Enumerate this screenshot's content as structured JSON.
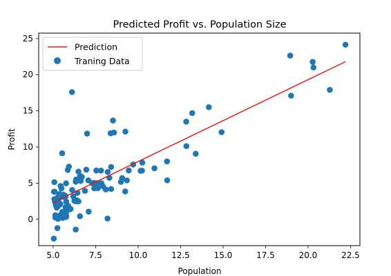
{
  "chart_data": {
    "type": "scatter",
    "title": "Predicted Profit vs. Population Size",
    "xlabel": "Population",
    "ylabel": "Profit",
    "xlim": [
      4.15,
      23.05
    ],
    "ylim": [
      -3.65,
      25.75
    ],
    "x_ticks": [
      "5.0",
      "7.5",
      "10.0",
      "12.5",
      "15.0",
      "17.5",
      "20.0",
      "22.5"
    ],
    "y_ticks": [
      "0",
      "5",
      "10",
      "15",
      "20",
      "25"
    ],
    "grid": false,
    "legend": {
      "position": "top-left",
      "entries": [
        "Prediction",
        "Traning Data"
      ]
    },
    "colors": {
      "prediction": "#e31a1c",
      "training": "#1f77b4"
    },
    "series": [
      {
        "name": "Prediction",
        "type": "line",
        "x": [
          5.03,
          22.2
        ],
        "y": [
          2.35,
          21.8
        ]
      },
      {
        "name": "Traning Data",
        "type": "scatter",
        "points": [
          [
            6.11,
            17.59
          ],
          [
            5.53,
            9.13
          ],
          [
            8.52,
            13.66
          ],
          [
            7.0,
            11.85
          ],
          [
            5.86,
            6.82
          ],
          [
            8.38,
            11.89
          ],
          [
            7.48,
            4.35
          ],
          [
            8.58,
            12.0
          ],
          [
            6.49,
            6.6
          ],
          [
            5.05,
            3.82
          ],
          [
            5.71,
            3.25
          ],
          [
            14.16,
            15.51
          ],
          [
            5.73,
            3.16
          ],
          [
            8.41,
            7.23
          ],
          [
            5.64,
            0.72
          ],
          [
            5.38,
            3.51
          ],
          [
            6.37,
            5.3
          ],
          [
            5.13,
            0.56
          ],
          [
            6.43,
            3.65
          ],
          [
            7.07,
            5.39
          ],
          [
            6.19,
            3.14
          ],
          [
            20.27,
            21.77
          ],
          [
            5.49,
            4.26
          ],
          [
            6.33,
            5.19
          ],
          [
            5.56,
            3.08
          ],
          [
            18.95,
            22.64
          ],
          [
            12.83,
            13.5
          ],
          [
            10.96,
            7.05
          ],
          [
            13.18,
            14.69
          ],
          [
            22.2,
            24.15
          ],
          [
            5.25,
            -1.22
          ],
          [
            6.59,
            5.99
          ],
          [
            9.25,
            12.13
          ],
          [
            5.89,
            1.85
          ],
          [
            8.21,
            6.54
          ],
          [
            7.93,
            4.56
          ],
          [
            8.1,
            4.12
          ],
          [
            5.61,
            3.39
          ],
          [
            12.84,
            10.12
          ],
          [
            6.35,
            5.5
          ],
          [
            5.41,
            0.56
          ],
          [
            6.87,
            3.93
          ],
          [
            11.71,
            5.39
          ],
          [
            5.77,
            2.44
          ],
          [
            7.82,
            6.73
          ],
          [
            7.09,
            1.05
          ],
          [
            5.07,
            5.13
          ],
          [
            5.8,
            1.84
          ],
          [
            11.7,
            8.0
          ],
          [
            5.54,
            1.02
          ],
          [
            7.54,
            6.75
          ],
          [
            5.31,
            1.84
          ],
          [
            7.42,
            4.29
          ],
          [
            7.6,
            5.0
          ],
          [
            6.03,
            1.42
          ],
          [
            6.33,
            -1.42
          ],
          [
            6.36,
            2.48
          ],
          [
            5.44,
            4.6
          ],
          [
            5.09,
            3.81
          ],
          [
            6.4,
            2.62
          ],
          [
            7.41,
            5.03
          ],
          [
            9.34,
            5.37
          ],
          [
            5.76,
            4.97
          ],
          [
            6.25,
            2.55
          ],
          [
            7.84,
            4.98
          ],
          [
            5.76,
            0.31
          ],
          [
            5.78,
            0.43
          ],
          [
            9.06,
            5.69
          ],
          [
            10.15,
            6.7
          ],
          [
            8.41,
            4.19
          ],
          [
            5.13,
            0.23
          ],
          [
            5.43,
            2.11
          ],
          [
            6.58,
            0.42
          ],
          [
            6.49,
            2.47
          ],
          [
            6.37,
            2.56
          ],
          [
            9.71,
            7.57
          ],
          [
            9.24,
            3.85
          ],
          [
            10.23,
            6.72
          ],
          [
            5.07,
            2.79
          ],
          [
            5.31,
            2.72
          ],
          [
            5.11,
            2.39
          ],
          [
            8.2,
            0.1
          ],
          [
            5.21,
            1.61
          ],
          [
            8.31,
            5.73
          ],
          [
            10.25,
            7.83
          ],
          [
            5.04,
            -2.68
          ],
          [
            6.69,
            5.87
          ],
          [
            5.2,
            2.55
          ],
          [
            6.12,
            4.05
          ],
          [
            5.29,
            0.06
          ],
          [
            5.3,
            3.13
          ],
          [
            13.39,
            9.06
          ],
          [
            7.63,
            4.3
          ],
          [
            5.79,
            1.05
          ],
          [
            5.16,
            1.95
          ],
          [
            5.73,
            1.65
          ],
          [
            8.99,
            5.17
          ],
          [
            6.95,
            6.86
          ],
          [
            5.93,
            7.28
          ],
          [
            9.45,
            6.75
          ],
          [
            5.56,
            0.18
          ],
          [
            19.0,
            17.1
          ],
          [
            20.32,
            21.0
          ],
          [
            21.28,
            17.9
          ],
          [
            14.91,
            12.05
          ],
          [
            6.62,
            5.3
          ],
          [
            7.29,
            4.99
          ]
        ]
      }
    ]
  }
}
